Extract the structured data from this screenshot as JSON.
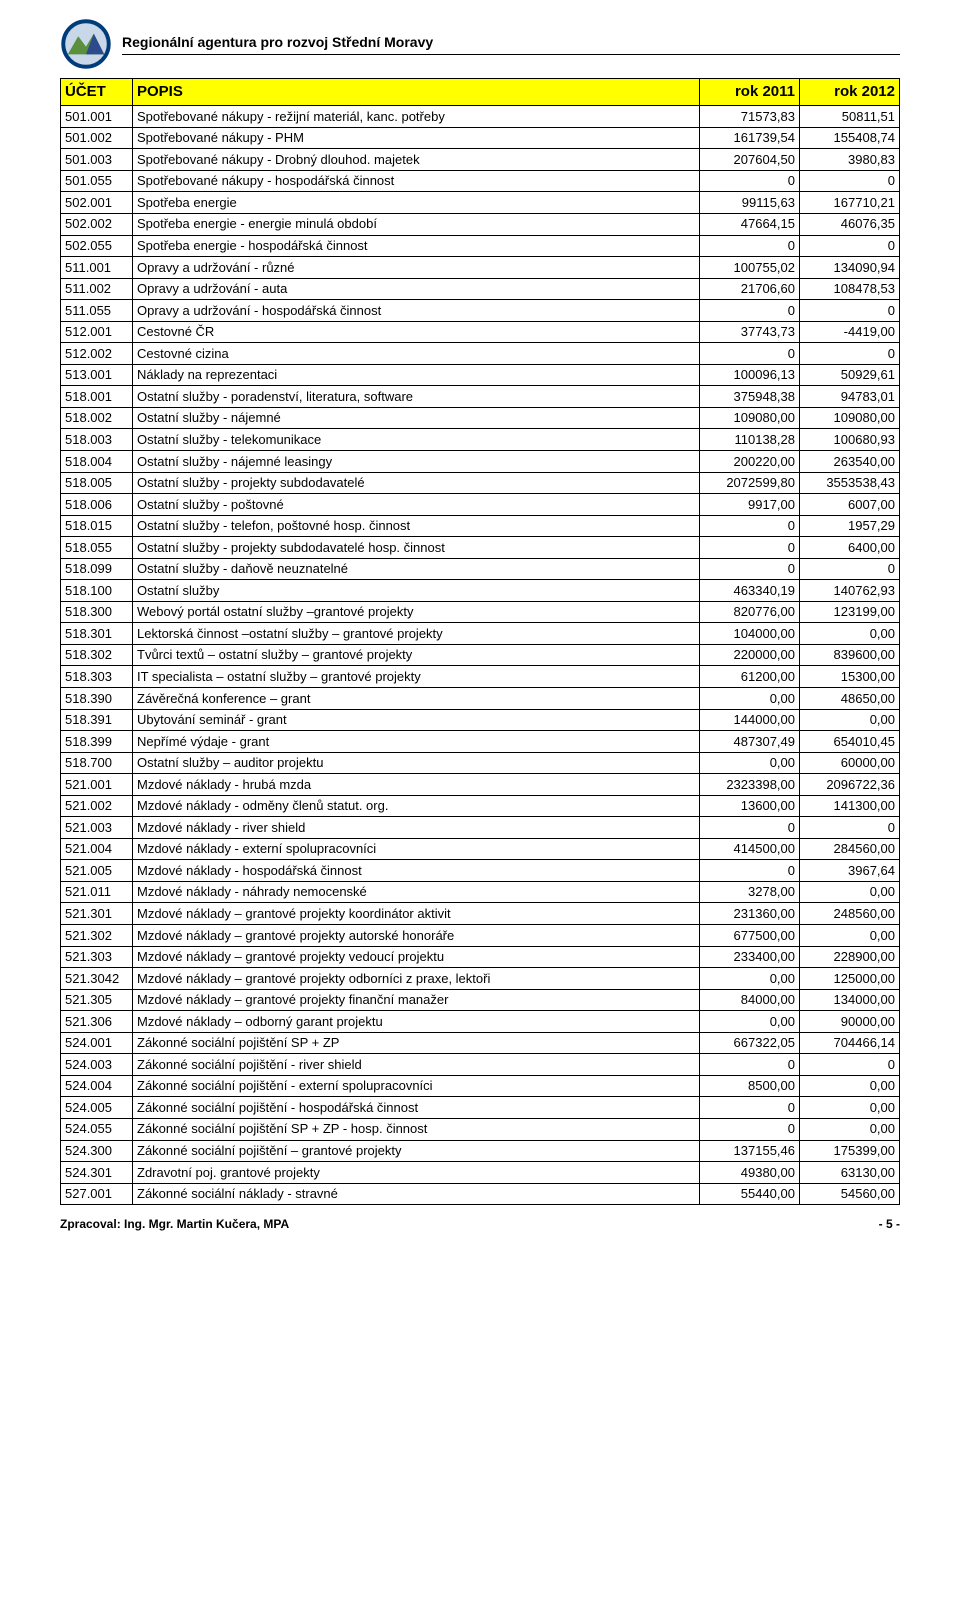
{
  "org_title": "Regionální agentura pro rozvoj Střední Moravy",
  "table": {
    "headers": {
      "ucet": "ÚČET",
      "popis": "POPIS",
      "y1": "rok 2011",
      "y2": "rok 2012"
    },
    "header_bg": "#ffff00",
    "border_color": "#000000",
    "rows": [
      {
        "u": "501.001",
        "p": "Spotřebované nákupy - režijní materiál, kanc. potřeby",
        "a": "71573,83",
        "b": "50811,51"
      },
      {
        "u": "501.002",
        "p": "Spotřebované nákupy - PHM",
        "a": "161739,54",
        "b": "155408,74"
      },
      {
        "u": "501.003",
        "p": "Spotřebované nákupy - Drobný dlouhod. majetek",
        "a": "207604,50",
        "b": "3980,83"
      },
      {
        "u": "501.055",
        "p": "Spotřebované nákupy - hospodářská činnost",
        "a": "0",
        "b": "0"
      },
      {
        "u": "502.001",
        "p": "Spotřeba energie",
        "a": "99115,63",
        "b": "167710,21"
      },
      {
        "u": "502.002",
        "p": "Spotřeba energie - energie minulá období",
        "a": "47664,15",
        "b": "46076,35"
      },
      {
        "u": "502.055",
        "p": "Spotřeba energie - hospodářská činnost",
        "a": "0",
        "b": "0"
      },
      {
        "u": "511.001",
        "p": "Opravy a udržování - různé",
        "a": "100755,02",
        "b": "134090,94"
      },
      {
        "u": "511.002",
        "p": "Opravy a udržování - auta",
        "a": "21706,60",
        "b": "108478,53"
      },
      {
        "u": "511.055",
        "p": "Opravy a udržování - hospodářská činnost",
        "a": "0",
        "b": "0"
      },
      {
        "u": "512.001",
        "p": "Cestovné ČR",
        "a": "37743,73",
        "b": "-4419,00"
      },
      {
        "u": "512.002",
        "p": "Cestovné cizina",
        "a": "0",
        "b": "0"
      },
      {
        "u": "513.001",
        "p": "Náklady na reprezentaci",
        "a": "100096,13",
        "b": "50929,61"
      },
      {
        "u": "518.001",
        "p": "Ostatní služby - poradenství, literatura, software",
        "a": "375948,38",
        "b": "94783,01"
      },
      {
        "u": "518.002",
        "p": "Ostatní služby - nájemné",
        "a": "109080,00",
        "b": "109080,00"
      },
      {
        "u": "518.003",
        "p": "Ostatní služby - telekomunikace",
        "a": "110138,28",
        "b": "100680,93"
      },
      {
        "u": "518.004",
        "p": "Ostatní služby - nájemné leasingy",
        "a": "200220,00",
        "b": "263540,00"
      },
      {
        "u": "518.005",
        "p": "Ostatní služby - projekty subdodavatelé",
        "a": "2072599,80",
        "b": "3553538,43"
      },
      {
        "u": "518.006",
        "p": "Ostatní služby - poštovné",
        "a": "9917,00",
        "b": "6007,00"
      },
      {
        "u": "518.015",
        "p": "Ostatní služby - telefon, poštovné hosp. činnost",
        "a": "0",
        "b": "1957,29"
      },
      {
        "u": "518.055",
        "p": "Ostatní služby - projekty subdodavatelé hosp. činnost",
        "a": "0",
        "b": "6400,00"
      },
      {
        "u": "518.099",
        "p": "Ostatní služby - daňově neuznatelné",
        "a": "0",
        "b": "0"
      },
      {
        "u": "518.100",
        "p": "Ostatní služby",
        "a": "463340,19",
        "b": "140762,93"
      },
      {
        "u": "518.300",
        "p": "Webový portál ostatní služby –grantové projekty",
        "a": "820776,00",
        "b": "123199,00"
      },
      {
        "u": "518.301",
        "p": "Lektorská činnost –ostatní služby – grantové projekty",
        "a": "104000,00",
        "b": "0,00"
      },
      {
        "u": "518.302",
        "p": "Tvůrci textů – ostatní služby – grantové projekty",
        "a": "220000,00",
        "b": "839600,00"
      },
      {
        "u": "518.303",
        "p": "IT specialista – ostatní služby – grantové projekty",
        "a": "61200,00",
        "b": "15300,00"
      },
      {
        "u": "518.390",
        "p": "Závěrečná konference – grant",
        "a": "0,00",
        "b": "48650,00"
      },
      {
        "u": "518.391",
        "p": "Ubytování seminář - grant",
        "a": "144000,00",
        "b": "0,00"
      },
      {
        "u": "518.399",
        "p": "Nepřímé výdaje - grant",
        "a": "487307,49",
        "b": "654010,45"
      },
      {
        "u": "518.700",
        "p": "Ostatní služby – auditor projektu",
        "a": "0,00",
        "b": "60000,00"
      },
      {
        "u": "521.001",
        "p": "Mzdové náklady - hrubá mzda",
        "a": "2323398,00",
        "b": "2096722,36"
      },
      {
        "u": "521.002",
        "p": "Mzdové náklady - odměny členů statut. org.",
        "a": "13600,00",
        "b": "141300,00"
      },
      {
        "u": "521.003",
        "p": "Mzdové náklady - river shield",
        "a": "0",
        "b": "0"
      },
      {
        "u": "521.004",
        "p": "Mzdové náklady - externí spolupracovníci",
        "a": "414500,00",
        "b": "284560,00"
      },
      {
        "u": "521.005",
        "p": "Mzdové náklady - hospodářská činnost",
        "a": "0",
        "b": "3967,64"
      },
      {
        "u": "521.011",
        "p": "Mzdové náklady - náhrady nemocenské",
        "a": "3278,00",
        "b": "0,00"
      },
      {
        "u": "521.301",
        "p": "Mzdové náklady – grantové projekty koordinátor aktivit",
        "a": "231360,00",
        "b": "248560,00"
      },
      {
        "u": "521.302",
        "p": "Mzdové náklady – grantové projekty autorské honoráře",
        "a": "677500,00",
        "b": "0,00"
      },
      {
        "u": "521.303",
        "p": "Mzdové náklady – grantové projekty vedoucí projektu",
        "a": "233400,00",
        "b": "228900,00"
      },
      {
        "u": "521.3042",
        "p": "Mzdové náklady – grantové projekty odborníci z praxe, lektoři",
        "a": "0,00",
        "b": "125000,00"
      },
      {
        "u": "521.305",
        "p": "Mzdové náklady – grantové projekty finanční manažer",
        "a": "84000,00",
        "b": "134000,00"
      },
      {
        "u": "521.306",
        "p": "Mzdové náklady – odborný garant projektu",
        "a": "0,00",
        "b": "90000,00"
      },
      {
        "u": "524.001",
        "p": "Zákonné sociální pojištění SP + ZP",
        "a": "667322,05",
        "b": "704466,14"
      },
      {
        "u": "524.003",
        "p": "Zákonné sociální pojištění - river shield",
        "a": "0",
        "b": "0"
      },
      {
        "u": "524.004",
        "p": "Zákonné sociální pojištění - externí spolupracovníci",
        "a": "8500,00",
        "b": "0,00"
      },
      {
        "u": "524.005",
        "p": "Zákonné sociální pojištění - hospodářská činnost",
        "a": "0",
        "b": "0,00"
      },
      {
        "u": "524.055",
        "p": "Zákonné sociální pojištění SP + ZP - hosp. činnost",
        "a": "0",
        "b": "0,00"
      },
      {
        "u": "524.300",
        "p": "Zákonné sociální pojištění – grantové projekty",
        "a": "137155,46",
        "b": "175399,00"
      },
      {
        "u": "524.301",
        "p": "Zdravotní poj.  grantové projekty",
        "a": "49380,00",
        "b": "63130,00"
      },
      {
        "u": "527.001",
        "p": "Zákonné sociální náklady - stravné",
        "a": "55440,00",
        "b": "54560,00"
      }
    ]
  },
  "footer": {
    "left": "Zpracoval: Ing. Mgr. Martin Kučera, MPA",
    "right": "- 5 -"
  },
  "logo_colors": {
    "outer": "#003b7a",
    "mountain1": "#5a8f3e",
    "mountain2": "#2c4a8c",
    "sky": "#c8d8e8"
  }
}
